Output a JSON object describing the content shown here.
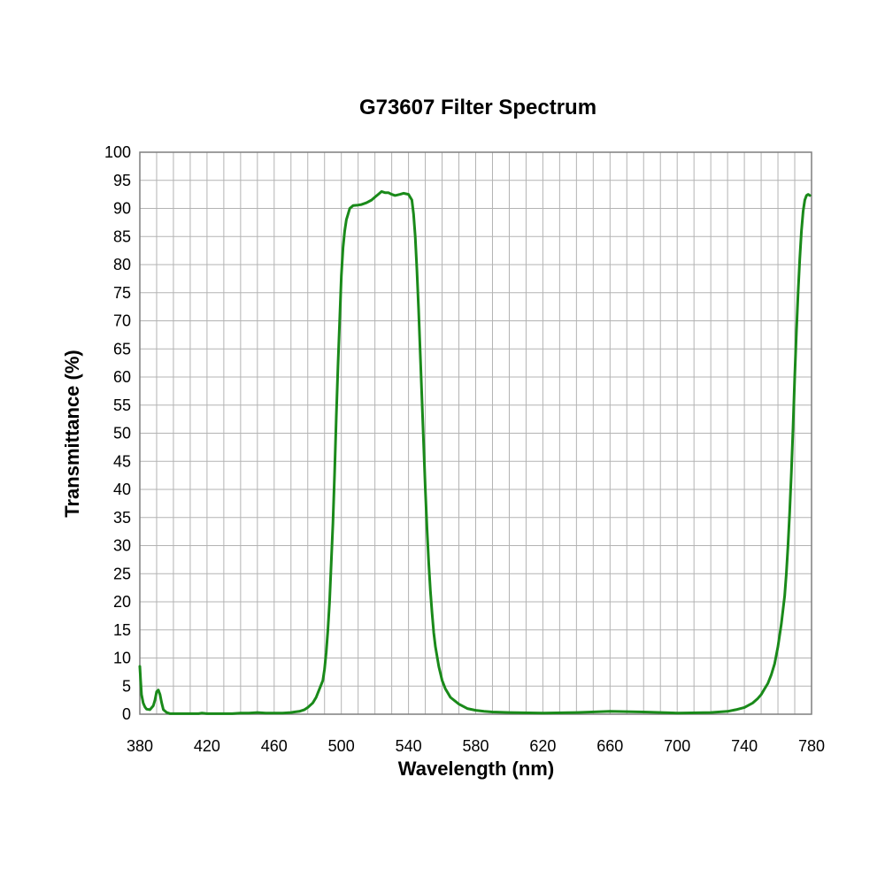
{
  "chart_data": {
    "type": "line",
    "title": "G73607 Filter Spectrum",
    "xlabel": "Wavelength (nm)",
    "ylabel": "Transmittance (%)",
    "xlim": [
      380,
      780
    ],
    "ylim": [
      0,
      100
    ],
    "x_ticks": [
      380,
      420,
      460,
      500,
      540,
      580,
      620,
      660,
      700,
      740,
      780
    ],
    "y_ticks": [
      0,
      5,
      10,
      15,
      20,
      25,
      30,
      35,
      40,
      45,
      50,
      55,
      60,
      65,
      70,
      75,
      80,
      85,
      90,
      95,
      100
    ],
    "x_minor_step": 10,
    "y_minor_step": 5,
    "grid": true,
    "line_color": "#1a8a1a",
    "series": [
      {
        "x": [
          380,
          380.5,
          381,
          382,
          383,
          384,
          386,
          388,
          389,
          390,
          391,
          392,
          393,
          394,
          396,
          398,
          400,
          405,
          410,
          415,
          417,
          420,
          425,
          430,
          435,
          440,
          445,
          450,
          455,
          460,
          465,
          470,
          472,
          475,
          478,
          480,
          483,
          485,
          487,
          489,
          490,
          491,
          492,
          493,
          494,
          495,
          496,
          497,
          498,
          499,
          500,
          501,
          502,
          503,
          504,
          505,
          507,
          510,
          512,
          515,
          518,
          520,
          522,
          524,
          526,
          528,
          530,
          532,
          535,
          537,
          540,
          542,
          543,
          544,
          545,
          546,
          547,
          548,
          549,
          550,
          551,
          552,
          553,
          554,
          555,
          556,
          558,
          560,
          562,
          565,
          570,
          575,
          580,
          585,
          590,
          600,
          620,
          640,
          660,
          680,
          700,
          720,
          730,
          735,
          740,
          745,
          748,
          750,
          752,
          754,
          756,
          758,
          760,
          762,
          764,
          765,
          766,
          767,
          768,
          769,
          770,
          771,
          772,
          773,
          774,
          775,
          776,
          777,
          778,
          779
        ],
        "y": [
          8.5,
          6.0,
          3.5,
          2.0,
          1.3,
          0.9,
          0.8,
          1.5,
          2.5,
          4.0,
          4.3,
          3.5,
          2.0,
          0.8,
          0.3,
          0.1,
          0.1,
          0.1,
          0.1,
          0.1,
          0.2,
          0.1,
          0.1,
          0.1,
          0.1,
          0.2,
          0.2,
          0.3,
          0.2,
          0.2,
          0.2,
          0.3,
          0.4,
          0.5,
          0.8,
          1.2,
          2.0,
          3.0,
          4.5,
          6.0,
          8.0,
          11.0,
          15.0,
          20.0,
          27.0,
          34.0,
          43.0,
          53.0,
          62.0,
          70.0,
          78.0,
          83.0,
          86.0,
          88.0,
          89.0,
          90.0,
          90.5,
          90.6,
          90.7,
          91.0,
          91.5,
          92.0,
          92.5,
          93.0,
          92.8,
          92.8,
          92.5,
          92.3,
          92.5,
          92.7,
          92.5,
          91.5,
          89.0,
          85.0,
          79.0,
          72.0,
          64.0,
          56.0,
          48.0,
          40.0,
          33.0,
          27.0,
          22.0,
          18.0,
          14.5,
          12.0,
          8.5,
          6.0,
          4.5,
          3.0,
          1.8,
          1.0,
          0.7,
          0.5,
          0.4,
          0.3,
          0.2,
          0.3,
          0.5,
          0.4,
          0.2,
          0.3,
          0.5,
          0.8,
          1.2,
          2.0,
          2.8,
          3.5,
          4.5,
          5.5,
          7.0,
          9.0,
          12.0,
          16.0,
          21.0,
          25.0,
          30.0,
          36.0,
          43.0,
          51.0,
          60.0,
          68.0,
          75.0,
          81.0,
          86.0,
          89.5,
          91.5,
          92.3,
          92.5,
          92.3
        ]
      }
    ]
  }
}
